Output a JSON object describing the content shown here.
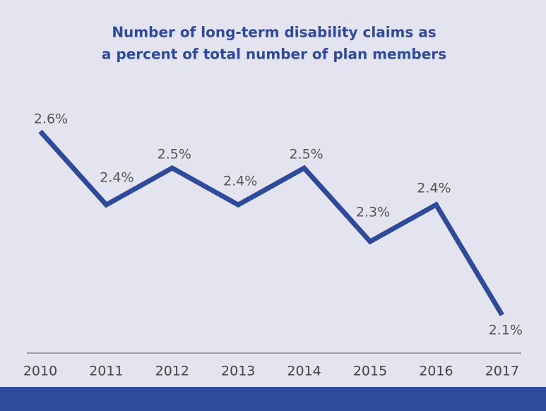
{
  "chart_data": {
    "type": "line",
    "title": [
      "Number of long-term disability claims as",
      "a percent of total number of plan members"
    ],
    "categories": [
      "2010",
      "2011",
      "2012",
      "2013",
      "2014",
      "2015",
      "2016",
      "2017"
    ],
    "series": [
      {
        "color": "#2e4a9a",
        "values": [
          2.6,
          2.4,
          2.5,
          2.4,
          2.5,
          2.3,
          2.4,
          2.1
        ],
        "value_labels": [
          "2.6%",
          "2.4%",
          "2.5%",
          "2.4%",
          "2.5%",
          "2.3%",
          "2.4%",
          "2.1%"
        ]
      }
    ],
    "ylim": [
      2.0,
      2.6
    ]
  }
}
